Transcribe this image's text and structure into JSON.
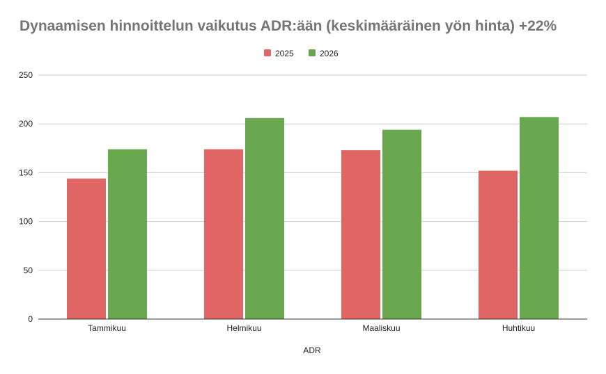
{
  "chart_data": {
    "type": "bar",
    "title": "Dynaamisen hinnoittelun vaikutus ADR:ään (keskimääräinen yön hinta) +22%",
    "xlabel": "ADR",
    "ylabel": "",
    "categories": [
      "Tammikuu",
      "Helmikuu",
      "Maaliskuu",
      "Huhtikuu"
    ],
    "series": [
      {
        "name": "2025",
        "color": "#e06666",
        "values": [
          144,
          174,
          173,
          152
        ]
      },
      {
        "name": "2026",
        "color": "#6aa84f",
        "values": [
          174,
          206,
          194,
          207
        ]
      }
    ],
    "ylim": [
      0,
      250
    ],
    "yticks": [
      0,
      50,
      100,
      150,
      200,
      250
    ],
    "grid": true,
    "legend_position": "top-center"
  }
}
